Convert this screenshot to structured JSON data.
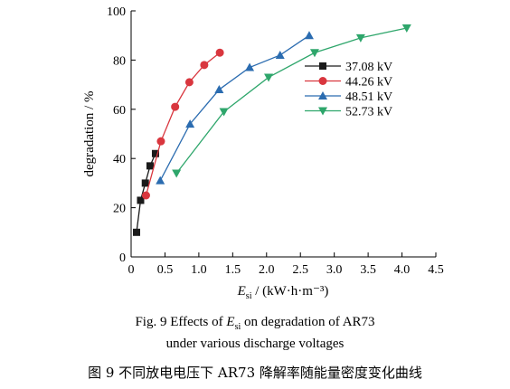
{
  "chart_data": {
    "type": "line",
    "xlabel": {
      "var": "E",
      "sub": "si",
      "rest": " / (kW·h·m⁻³)"
    },
    "ylabel": "degradation / %",
    "xlim": [
      0,
      4.5
    ],
    "ylim": [
      0,
      100
    ],
    "xticks": [
      "0",
      "0.5",
      "1.0",
      "1.5",
      "2.0",
      "2.5",
      "3.0",
      "3.5",
      "4.0",
      "4.5"
    ],
    "yticks": [
      "0",
      "20",
      "40",
      "60",
      "80",
      "100"
    ],
    "legend_position": "right-middle",
    "grid": false,
    "series": [
      {
        "name": "37.08 kV",
        "color": "#1a1a1a",
        "marker": "square",
        "x": [
          0.08,
          0.14,
          0.21,
          0.28,
          0.36
        ],
        "y": [
          10,
          23,
          30,
          37,
          42
        ]
      },
      {
        "name": "44.26 kV",
        "color": "#d9363e",
        "marker": "circle",
        "x": [
          0.22,
          0.44,
          0.65,
          0.86,
          1.08,
          1.31
        ],
        "y": [
          25,
          47,
          61,
          71,
          78,
          83
        ]
      },
      {
        "name": "48.51 kV",
        "color": "#2b6cb0",
        "marker": "triangle-up",
        "x": [
          0.43,
          0.87,
          1.3,
          1.75,
          2.2,
          2.63
        ],
        "y": [
          31,
          54,
          68,
          77,
          82,
          90
        ]
      },
      {
        "name": "52.73 kV",
        "color": "#2ea66b",
        "marker": "triangle-down",
        "x": [
          0.67,
          1.37,
          2.03,
          2.71,
          3.39,
          4.07
        ],
        "y": [
          34,
          59,
          73,
          83,
          89,
          93
        ]
      }
    ]
  },
  "caption": {
    "line1_prefix": "Fig. 9    Effects of ",
    "line1_var": "E",
    "line1_sub": "si",
    "line1_suffix": " on degradation of AR73",
    "line2": "under various discharge voltages",
    "line3": "图 9   不同放电电压下 AR73 降解率随能量密度变化曲线"
  }
}
